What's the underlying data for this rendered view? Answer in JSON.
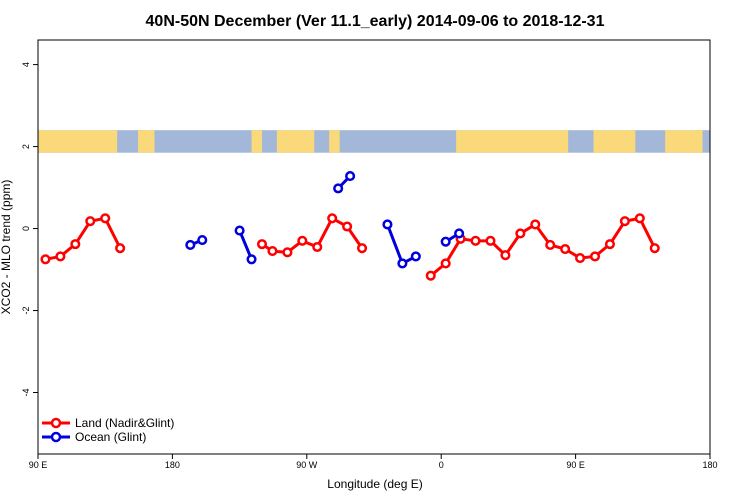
{
  "chart_data": {
    "type": "line",
    "title": "40N-50N December (Ver 11.1_early)   2014-09-06 to 2018-12-31",
    "xlabel": "Longitude (deg E)",
    "ylabel": "XCO2 - MLO trend (ppm)",
    "xlim": [
      90,
      540
    ],
    "ylim": [
      -5.5,
      4.6
    ],
    "x_ticks": [
      90,
      180,
      270,
      360,
      450,
      540
    ],
    "x_tick_labels": [
      "90 E",
      "180",
      "90 W",
      "0",
      "90 E",
      "180"
    ],
    "y_ticks": [
      -4,
      -2,
      0,
      2,
      4
    ],
    "y_tick_labels": [
      "-4",
      "-2",
      "0",
      "2",
      "4"
    ],
    "legend_position": "bottom-left",
    "colors": {
      "land": "#ff0000",
      "ocean": "#0000dd",
      "map_land": "#f9d97a",
      "map_ocean": "#a3b8d8"
    },
    "series": [
      {
        "name": "Land (Nadir&Glint)",
        "color": "#ff0000",
        "segments": [
          [
            [
              95,
              -0.75
            ],
            [
              105,
              -0.68
            ],
            [
              115,
              -0.38
            ],
            [
              125,
              0.18
            ],
            [
              135,
              0.25
            ],
            [
              145,
              -0.48
            ]
          ],
          [
            [
              240,
              -0.38
            ],
            [
              247,
              -0.55
            ],
            [
              257,
              -0.58
            ],
            [
              267,
              -0.3
            ],
            [
              277,
              -0.45
            ],
            [
              287,
              0.25
            ],
            [
              297,
              0.05
            ],
            [
              307,
              -0.48
            ]
          ],
          [
            [
              353,
              -1.15
            ],
            [
              363,
              -0.85
            ],
            [
              373,
              -0.25
            ],
            [
              383,
              -0.3
            ],
            [
              393,
              -0.3
            ],
            [
              403,
              -0.65
            ],
            [
              413,
              -0.12
            ],
            [
              423,
              0.1
            ],
            [
              433,
              -0.4
            ],
            [
              443,
              -0.5
            ],
            [
              453,
              -0.72
            ],
            [
              463,
              -0.68
            ],
            [
              473,
              -0.38
            ],
            [
              483,
              0.18
            ],
            [
              493,
              0.25
            ],
            [
              503,
              -0.48
            ]
          ]
        ]
      },
      {
        "name": "Ocean (Glint)",
        "color": "#0000dd",
        "segments": [
          [
            [
              192,
              -0.4
            ],
            [
              200,
              -0.28
            ]
          ],
          [
            [
              225,
              -0.05
            ],
            [
              233,
              -0.75
            ]
          ],
          [
            [
              291,
              0.98
            ],
            [
              299,
              1.28
            ]
          ],
          [
            [
              324,
              0.1
            ],
            [
              334,
              -0.85
            ],
            [
              343,
              -0.68
            ]
          ],
          [
            [
              363,
              -0.32
            ],
            [
              372,
              -0.12
            ]
          ]
        ]
      }
    ],
    "map_strip": {
      "y_range": [
        1.85,
        2.4
      ],
      "land_spans": [
        [
          90,
          143
        ],
        [
          157,
          168
        ],
        [
          233,
          240
        ],
        [
          250,
          275
        ],
        [
          285,
          292
        ],
        [
          370,
          445
        ],
        [
          462,
          490
        ],
        [
          510,
          535
        ]
      ]
    }
  }
}
